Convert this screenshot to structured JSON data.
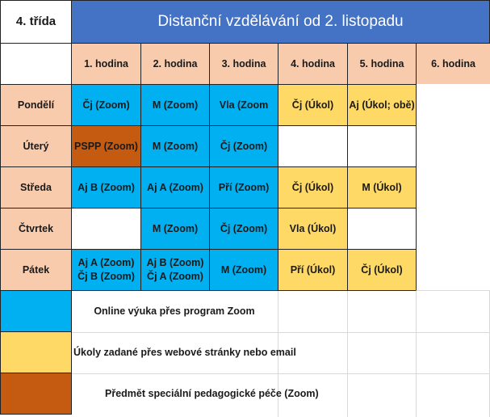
{
  "grade": "4. třída",
  "title": "Distanční vzdělávání  od 2. listopadu",
  "hours": [
    "1. hodina",
    "2. hodina",
    "3. hodina",
    "4. hodina",
    "5. hodina",
    "6. hodina"
  ],
  "days": [
    {
      "name": "Pondělí",
      "cells": [
        {
          "text": [
            "Čj (Zoom)"
          ],
          "type": "zoom"
        },
        {
          "text": [
            "M (Zoom)"
          ],
          "type": "zoom"
        },
        {
          "text": [
            "Vla (Zoom"
          ],
          "type": "zoom"
        },
        {
          "text": [
            "Čj (Úkol)"
          ],
          "type": "ukol"
        },
        {
          "text": [
            "Aj (Úkol; obě)"
          ],
          "type": "ukol"
        },
        {
          "text": [],
          "type": "empty"
        }
      ]
    },
    {
      "name": "Úterý",
      "cells": [
        {
          "text": [
            "PSPP (Zoom)"
          ],
          "type": "pspp"
        },
        {
          "text": [
            "M (Zoom)"
          ],
          "type": "zoom"
        },
        {
          "text": [
            "Čj (Zoom)"
          ],
          "type": "zoom"
        },
        {
          "text": [],
          "type": "empty"
        },
        {
          "text": [],
          "type": "empty"
        },
        {
          "text": [],
          "type": "empty"
        }
      ]
    },
    {
      "name": "Středa",
      "cells": [
        {
          "text": [
            "Aj B (Zoom)"
          ],
          "type": "zoom"
        },
        {
          "text": [
            "Aj A (Zoom)"
          ],
          "type": "zoom"
        },
        {
          "text": [
            "Pří (Zoom)"
          ],
          "type": "zoom"
        },
        {
          "text": [
            "Čj (Úkol)"
          ],
          "type": "ukol"
        },
        {
          "text": [
            "M (Úkol)"
          ],
          "type": "ukol"
        },
        {
          "text": [],
          "type": "empty"
        }
      ]
    },
    {
      "name": "Čtvrtek",
      "cells": [
        {
          "text": [],
          "type": "empty"
        },
        {
          "text": [
            "M (Zoom)"
          ],
          "type": "zoom"
        },
        {
          "text": [
            "Čj (Zoom)"
          ],
          "type": "zoom"
        },
        {
          "text": [
            "Vla (Úkol)"
          ],
          "type": "ukol"
        },
        {
          "text": [],
          "type": "empty"
        },
        {
          "text": [],
          "type": "empty"
        }
      ]
    },
    {
      "name": "Pátek",
      "cells": [
        {
          "text": [
            "Aj A (Zoom)",
            "Čj B (Zoom)"
          ],
          "type": "zoom"
        },
        {
          "text": [
            "Aj B (Zoom)",
            "Čj A (Zoom)"
          ],
          "type": "zoom"
        },
        {
          "text": [
            "M (Zoom)"
          ],
          "type": "zoom"
        },
        {
          "text": [
            "Pří (Úkol)"
          ],
          "type": "ukol"
        },
        {
          "text": [
            "Čj (Úkol)"
          ],
          "type": "ukol"
        },
        {
          "text": [],
          "type": "empty"
        }
      ]
    }
  ],
  "legend": [
    {
      "type": "zoom",
      "text": "Online výuka přes program Zoom"
    },
    {
      "type": "ukol",
      "text": "Úkoly zadané přes webové stránky nebo email"
    },
    {
      "type": "pspp",
      "text": "Předmět speciální pedagogické péče (Zoom)"
    }
  ],
  "colors": {
    "title_bg": "#4472c4",
    "header_bg": "#f8cbad",
    "zoom": "#00b0f0",
    "ukol": "#ffd966",
    "pspp": "#c55a11"
  }
}
